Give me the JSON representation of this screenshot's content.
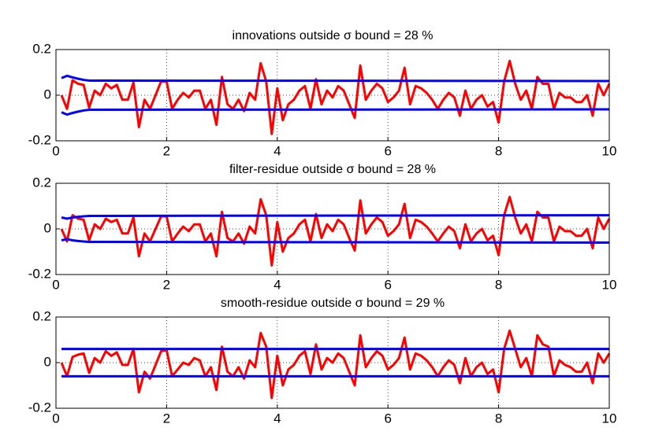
{
  "chart_data": [
    {
      "type": "line",
      "title": "innovations outside σ bound = 28 %",
      "xlim": [
        0,
        10
      ],
      "ylim": [
        -0.2,
        0.2
      ],
      "xticks": [
        0,
        2,
        4,
        6,
        8,
        10
      ],
      "yticks": [
        -0.2,
        0,
        0.2
      ],
      "grid": true,
      "x": [
        0.1,
        0.2,
        0.3,
        0.4,
        0.5,
        0.6,
        0.7,
        0.8,
        0.9,
        1.0,
        1.1,
        1.2,
        1.3,
        1.4,
        1.5,
        1.6,
        1.7,
        1.8,
        1.9,
        2.0,
        2.1,
        2.2,
        2.3,
        2.4,
        2.5,
        2.6,
        2.7,
        2.8,
        2.9,
        3.0,
        3.1,
        3.2,
        3.3,
        3.4,
        3.5,
        3.6,
        3.7,
        3.8,
        3.9,
        4.0,
        4.1,
        4.2,
        4.3,
        4.4,
        4.5,
        4.6,
        4.7,
        4.8,
        4.9,
        5.0,
        5.1,
        5.2,
        5.3,
        5.4,
        5.5,
        5.6,
        5.7,
        5.8,
        5.9,
        6.0,
        6.1,
        6.2,
        6.3,
        6.4,
        6.5,
        6.6,
        6.7,
        6.8,
        6.9,
        7.0,
        7.1,
        7.2,
        7.3,
        7.4,
        7.5,
        7.6,
        7.7,
        7.8,
        7.9,
        8.0,
        8.1,
        8.2,
        8.3,
        8.4,
        8.5,
        8.6,
        8.7,
        8.8,
        8.9,
        9.0,
        9.1,
        9.2,
        9.3,
        9.4,
        9.5,
        9.6,
        9.7,
        9.8,
        9.9,
        10.0
      ],
      "series": [
        {
          "color": "#ff0000",
          "values": [
            0.0,
            -0.06,
            0.065,
            0.05,
            0.045,
            -0.055,
            0.02,
            0.0,
            0.05,
            0.03,
            0.045,
            -0.02,
            -0.02,
            0.055,
            -0.14,
            -0.02,
            -0.06,
            0.0,
            0.06,
            0.06,
            -0.06,
            -0.02,
            0.01,
            -0.01,
            0.02,
            0.02,
            -0.06,
            -0.02,
            -0.13,
            0.08,
            -0.04,
            -0.06,
            -0.02,
            -0.07,
            0.01,
            -0.02,
            0.14,
            0.06,
            -0.17,
            0.03,
            -0.11,
            -0.04,
            -0.02,
            0.02,
            0.04,
            -0.06,
            0.07,
            -0.04,
            0.02,
            -0.01,
            0.04,
            0.02,
            -0.04,
            -0.1,
            0.13,
            -0.02,
            0.02,
            0.05,
            0.03,
            -0.03,
            -0.01,
            0.02,
            0.12,
            -0.04,
            0.04,
            0.03,
            0.01,
            -0.02,
            -0.06,
            -0.02,
            0.01,
            -0.01,
            -0.09,
            0.02,
            -0.06,
            -0.02,
            0.0,
            -0.05,
            -0.03,
            -0.12,
            0.06,
            0.15,
            0.05,
            -0.02,
            0.02,
            -0.06,
            0.08,
            0.05,
            0.05,
            -0.06,
            0.01,
            -0.01,
            -0.01,
            -0.03,
            -0.03,
            0.0,
            -0.09,
            0.05,
            0.0,
            0.05
          ]
        },
        {
          "color": "#0000ff",
          "x": [
            0.1,
            0.2,
            0.3,
            0.4,
            0.5,
            0.6,
            10
          ],
          "values": [
            0.075,
            0.085,
            0.078,
            0.072,
            0.067,
            0.064,
            0.062
          ]
        },
        {
          "color": "#0000ff",
          "x": [
            0.1,
            0.2,
            0.3,
            0.4,
            0.5,
            0.6,
            10
          ],
          "values": [
            -0.075,
            -0.085,
            -0.078,
            -0.072,
            -0.067,
            -0.064,
            -0.062
          ]
        }
      ]
    },
    {
      "type": "line",
      "title": "filter-residue outside σ bound = 28 %",
      "xlim": [
        0,
        10
      ],
      "ylim": [
        -0.2,
        0.2
      ],
      "xticks": [
        0,
        2,
        4,
        6,
        8,
        10
      ],
      "yticks": [
        -0.2,
        0,
        0.2
      ],
      "grid": true,
      "x": [
        0.1,
        0.2,
        0.3,
        0.4,
        0.5,
        0.6,
        0.7,
        0.8,
        0.9,
        1.0,
        1.1,
        1.2,
        1.3,
        1.4,
        1.5,
        1.6,
        1.7,
        1.8,
        1.9,
        2.0,
        2.1,
        2.2,
        2.3,
        2.4,
        2.5,
        2.6,
        2.7,
        2.8,
        2.9,
        3.0,
        3.1,
        3.2,
        3.3,
        3.4,
        3.5,
        3.6,
        3.7,
        3.8,
        3.9,
        4.0,
        4.1,
        4.2,
        4.3,
        4.4,
        4.5,
        4.6,
        4.7,
        4.8,
        4.9,
        5.0,
        5.1,
        5.2,
        5.3,
        5.4,
        5.5,
        5.6,
        5.7,
        5.8,
        5.9,
        6.0,
        6.1,
        6.2,
        6.3,
        6.4,
        6.5,
        6.6,
        6.7,
        6.8,
        6.9,
        7.0,
        7.1,
        7.2,
        7.3,
        7.4,
        7.5,
        7.6,
        7.7,
        7.8,
        7.9,
        8.0,
        8.1,
        8.2,
        8.3,
        8.4,
        8.5,
        8.6,
        8.7,
        8.8,
        8.9,
        9.0,
        9.1,
        9.2,
        9.3,
        9.4,
        9.5,
        9.6,
        9.7,
        9.8,
        9.9,
        10.0
      ],
      "series": [
        {
          "color": "#ff0000",
          "values": [
            0.0,
            -0.055,
            0.06,
            0.045,
            0.04,
            -0.05,
            0.02,
            0.0,
            0.045,
            0.03,
            0.04,
            -0.02,
            -0.02,
            0.05,
            -0.12,
            -0.02,
            -0.055,
            0.0,
            0.055,
            0.055,
            -0.055,
            -0.02,
            0.01,
            -0.01,
            0.02,
            0.02,
            -0.055,
            -0.02,
            -0.12,
            0.075,
            -0.04,
            -0.055,
            -0.02,
            -0.065,
            0.01,
            -0.02,
            0.13,
            0.06,
            -0.16,
            0.03,
            -0.1,
            -0.04,
            -0.02,
            0.02,
            0.04,
            -0.055,
            0.065,
            -0.04,
            0.02,
            -0.01,
            0.04,
            0.02,
            -0.04,
            -0.095,
            0.125,
            -0.02,
            0.02,
            0.05,
            0.03,
            -0.03,
            -0.01,
            0.02,
            0.11,
            -0.04,
            0.04,
            0.03,
            0.01,
            -0.02,
            -0.055,
            -0.02,
            0.01,
            -0.01,
            -0.085,
            0.02,
            -0.055,
            -0.02,
            0.0,
            -0.05,
            -0.03,
            -0.115,
            0.06,
            0.14,
            0.05,
            -0.02,
            0.02,
            -0.055,
            0.075,
            0.05,
            0.05,
            -0.055,
            0.01,
            -0.01,
            -0.01,
            -0.03,
            -0.03,
            0.0,
            -0.085,
            0.05,
            0.0,
            0.045
          ]
        },
        {
          "color": "#0000ff",
          "x": [
            0.1,
            0.2,
            0.3,
            0.4,
            0.5,
            0.6,
            10
          ],
          "values": [
            0.05,
            0.045,
            0.05,
            0.053,
            0.055,
            0.057,
            0.06
          ]
        },
        {
          "color": "#0000ff",
          "x": [
            0.1,
            0.2,
            0.3,
            0.4,
            0.5,
            0.6,
            10
          ],
          "values": [
            -0.05,
            -0.045,
            -0.05,
            -0.053,
            -0.055,
            -0.057,
            -0.06
          ]
        }
      ]
    },
    {
      "type": "line",
      "title": "smooth-residue outside σ bound = 29 %",
      "xlim": [
        0,
        10
      ],
      "ylim": [
        -0.2,
        0.2
      ],
      "xticks": [
        0,
        2,
        4,
        6,
        8,
        10
      ],
      "yticks": [
        -0.2,
        0,
        0.2
      ],
      "grid": true,
      "x": [
        0.1,
        0.2,
        0.3,
        0.4,
        0.5,
        0.6,
        0.7,
        0.8,
        0.9,
        1.0,
        1.1,
        1.2,
        1.3,
        1.4,
        1.5,
        1.6,
        1.7,
        1.8,
        1.9,
        2.0,
        2.1,
        2.2,
        2.3,
        2.4,
        2.5,
        2.6,
        2.7,
        2.8,
        2.9,
        3.0,
        3.1,
        3.2,
        3.3,
        3.4,
        3.5,
        3.6,
        3.7,
        3.8,
        3.9,
        4.0,
        4.1,
        4.2,
        4.3,
        4.4,
        4.5,
        4.6,
        4.7,
        4.8,
        4.9,
        5.0,
        5.1,
        5.2,
        5.3,
        5.4,
        5.5,
        5.6,
        5.7,
        5.8,
        5.9,
        6.0,
        6.1,
        6.2,
        6.3,
        6.4,
        6.5,
        6.6,
        6.7,
        6.8,
        6.9,
        7.0,
        7.1,
        7.2,
        7.3,
        7.4,
        7.5,
        7.6,
        7.7,
        7.8,
        7.9,
        8.0,
        8.1,
        8.2,
        8.3,
        8.4,
        8.5,
        8.6,
        8.7,
        8.8,
        8.9,
        9.0,
        9.1,
        9.2,
        9.3,
        9.4,
        9.5,
        9.6,
        9.7,
        9.8,
        9.9,
        10.0
      ],
      "series": [
        {
          "color": "#ff0000",
          "values": [
            0.0,
            -0.06,
            0.025,
            0.035,
            0.04,
            -0.045,
            0.02,
            0.0,
            0.05,
            0.03,
            0.045,
            -0.01,
            -0.01,
            0.06,
            -0.13,
            -0.04,
            -0.07,
            -0.01,
            0.05,
            0.055,
            -0.06,
            -0.03,
            0.0,
            -0.01,
            0.02,
            0.01,
            -0.06,
            -0.02,
            -0.12,
            0.07,
            -0.04,
            -0.06,
            -0.02,
            -0.07,
            0.01,
            -0.02,
            0.13,
            0.07,
            -0.155,
            0.03,
            -0.1,
            -0.03,
            -0.01,
            0.03,
            0.05,
            -0.05,
            0.08,
            -0.03,
            0.02,
            0.0,
            0.04,
            0.02,
            -0.04,
            -0.1,
            0.12,
            -0.02,
            0.02,
            0.05,
            0.03,
            -0.03,
            -0.01,
            0.02,
            0.11,
            -0.03,
            0.04,
            0.03,
            0.01,
            -0.02,
            -0.06,
            -0.02,
            0.01,
            -0.01,
            -0.09,
            0.02,
            -0.06,
            -0.02,
            0.0,
            -0.05,
            -0.03,
            -0.13,
            0.06,
            0.14,
            0.06,
            -0.02,
            0.02,
            -0.06,
            0.12,
            0.08,
            0.07,
            -0.06,
            0.01,
            -0.01,
            -0.02,
            -0.04,
            -0.04,
            0.0,
            -0.09,
            0.04,
            0.0,
            0.04
          ]
        },
        {
          "color": "#0000ff",
          "x": [
            0.1,
            10
          ],
          "values": [
            0.06,
            0.06
          ]
        },
        {
          "color": "#0000ff",
          "x": [
            0.1,
            10
          ],
          "values": [
            -0.06,
            -0.06
          ]
        }
      ]
    }
  ]
}
